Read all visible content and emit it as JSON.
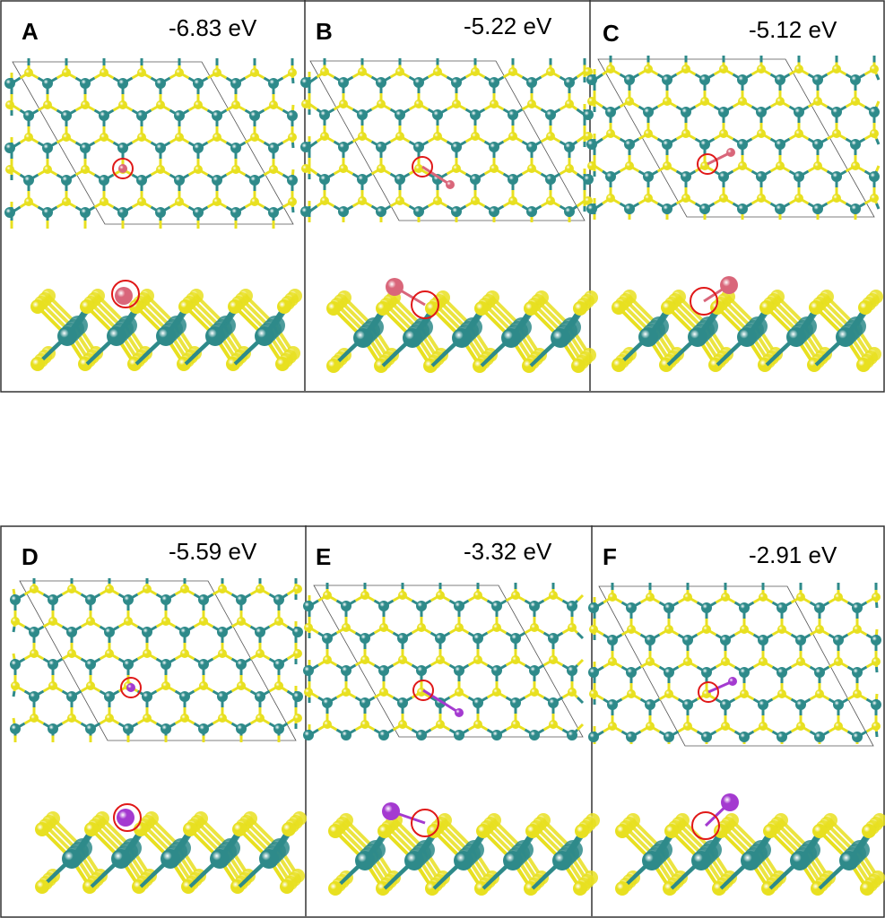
{
  "colors": {
    "metal_atom": "#2e8a8a",
    "chalcogen_atom": "#e8e020",
    "adsorbate_top_row": "#d9667a",
    "adsorbate_bottom_row": "#a43ad0",
    "highlight_circle": "#e01818",
    "frame": "#333333"
  },
  "panels": [
    {
      "label": "A",
      "energy": "-6.83 eV",
      "adsorbate": "top_row"
    },
    {
      "label": "B",
      "energy": "-5.22 eV",
      "adsorbate": "top_row"
    },
    {
      "label": "C",
      "energy": "-5.12 eV",
      "adsorbate": "top_row"
    },
    {
      "label": "D",
      "energy": "-5.59 eV",
      "adsorbate": "bottom_row"
    },
    {
      "label": "E",
      "energy": "-3.32 eV",
      "adsorbate": "bottom_row"
    },
    {
      "label": "F",
      "energy": "-2.91 eV",
      "adsorbate": "bottom_row"
    }
  ]
}
